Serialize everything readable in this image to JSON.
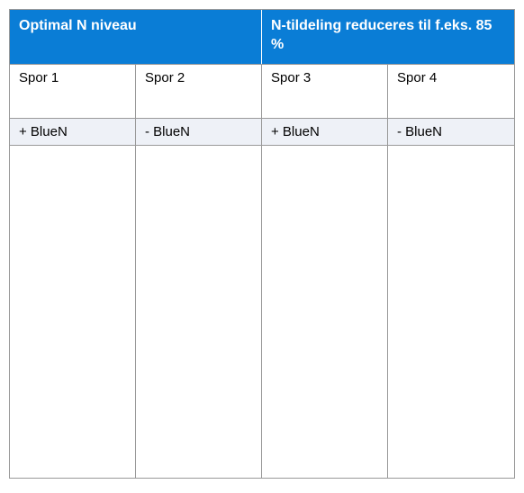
{
  "table": {
    "type": "table",
    "header_bg": "#0a7dd6",
    "header_text_color": "#ffffff",
    "border_color": "#999999",
    "alt_row_bg": "#eef1f7",
    "headers": [
      {
        "label": "Optimal N niveau",
        "span": 2
      },
      {
        "label": "N-tildeling reduceres til f.eks. 85 %",
        "span": 2
      }
    ],
    "spor_row": [
      "Spor 1",
      "Spor 2",
      "Spor 3",
      "Spor 4"
    ],
    "bluen_row": [
      "+ BlueN",
      "-    BlueN",
      "+ BlueN",
      "- BlueN"
    ],
    "columns": 4,
    "col_width_pct": 25
  }
}
